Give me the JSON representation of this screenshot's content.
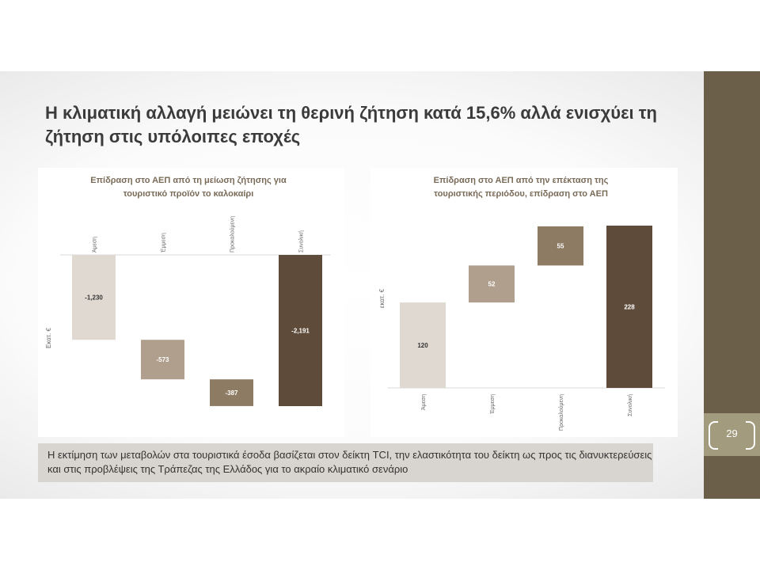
{
  "slide": {
    "title": "Η κλιματική αλλαγή μειώνει τη θερινή ζήτηση κατά 15,6% αλλά ενισχύει τη ζήτηση στις υπόλοιπες εποχές",
    "page_number": "29",
    "note": "Η εκτίμηση των μεταβολών στα τουριστικά έσοδα βασίζεται στον δείκτη TCI, την ελαστικότητα του δείκτη ως προς τις διανυκτερεύσεις και στις προβλέψεις της Τράπεζας της Ελλάδος για το ακραίο κλιματικό σενάριο",
    "colors": {
      "sidebar": "#6b5f49",
      "page_box": "#a39b7d",
      "note_bg": "#d8d4cf"
    }
  },
  "chart_data": [
    {
      "type": "bar",
      "subtype": "waterfall",
      "title": "Επίδραση στο ΑΕΠ από τη μείωση ζήτησης για τουριστικό προϊόν το καλοκαίρι",
      "ylabel": "Εκατ. €",
      "categories": [
        "Άμεση",
        "Έμμεση",
        "Προκαλούμενη",
        "Συνολική"
      ],
      "values": [
        -1230,
        -573,
        -387,
        -2191
      ],
      "labels": [
        "-1,230",
        "-573",
        "-387",
        "-2,191"
      ],
      "colors": [
        "#e0d9d1",
        "#b09f8c",
        "#8e7b63",
        "#5e4b3a"
      ],
      "ylim": [
        -2191,
        0
      ],
      "category_label_position": "top",
      "grid": false
    },
    {
      "type": "bar",
      "subtype": "waterfall",
      "title": "Επίδραση στο ΑΕΠ από την επέκταση της τουριστικής περιόδου, επίδραση στο ΑΕΠ",
      "ylabel": "εκατ. €",
      "categories": [
        "Άμεση",
        "Έμμεση",
        "Προκαλούμενη",
        "Συνολική"
      ],
      "values": [
        120,
        52,
        55,
        228
      ],
      "labels": [
        "120",
        "52",
        "55",
        "228"
      ],
      "colors": [
        "#e0d9d1",
        "#b09f8c",
        "#8e7b63",
        "#5e4b3a"
      ],
      "ylim": [
        0,
        228
      ],
      "category_label_position": "bottom",
      "grid": false
    }
  ]
}
